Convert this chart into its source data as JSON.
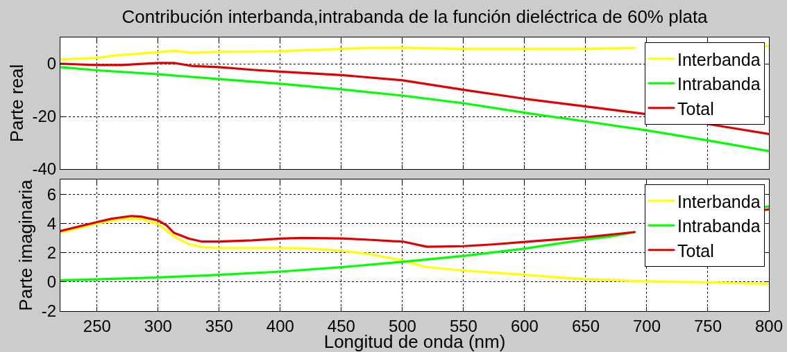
{
  "chart_data": [
    {
      "type": "line",
      "title": "Contribución interbanda,intrabanda de la función dieléctrica de 60% plata",
      "ylabel": "Parte real",
      "xlim": [
        220,
        800
      ],
      "xticks": [
        250,
        300,
        350,
        400,
        450,
        500,
        550,
        600,
        650,
        700,
        750,
        800
      ],
      "ylim": [
        -40,
        10
      ],
      "yticks": [
        -40,
        -20,
        0
      ],
      "grid": true,
      "legend": "top right",
      "tick_labels": "y",
      "series": [
        {
          "name": "Interbanda",
          "color": "#ffff00",
          "x": [
            220,
            250,
            266,
            300,
            313,
            327,
            350,
            377,
            400,
            418,
            450,
            470,
            500,
            550,
            600,
            650,
            690,
            740,
            795,
            800
          ],
          "values": [
            1.6,
            2.2,
            3.2,
            4.4,
            4.9,
            4.2,
            4.5,
            4.6,
            4.7,
            5.1,
            5.6,
            6.0,
            6.1,
            5.6,
            5.6,
            5.6,
            6.0,
            null,
            6.7,
            6.7
          ]
        },
        {
          "name": "Intrabanda",
          "color": "#00ff00",
          "x": [
            220,
            250,
            300,
            350,
            400,
            450,
            500,
            550,
            600,
            650,
            700,
            750,
            800
          ],
          "values": [
            -1.3,
            -2.5,
            -4.0,
            -5.8,
            -7.6,
            -9.7,
            -12.1,
            -15.0,
            -18.6,
            -21.9,
            -25.3,
            -29.1,
            -33.2
          ]
        },
        {
          "name": "Total",
          "color": "#e00000",
          "x": [
            220,
            250,
            270,
            300,
            313,
            327,
            350,
            377,
            400,
            450,
            500,
            550,
            600,
            650,
            697,
            750,
            800
          ],
          "values": [
            0.0,
            -0.5,
            -0.5,
            0.3,
            0.3,
            -0.8,
            -1.3,
            -2.3,
            -3.0,
            -4.3,
            -6.3,
            -9.9,
            -13.3,
            -16.2,
            -19.0,
            -22.9,
            -26.7
          ]
        }
      ]
    },
    {
      "type": "line",
      "xlabel": "Longitud de onda (nm)",
      "ylabel": "Parte imaginaria",
      "xlim": [
        220,
        800
      ],
      "xticks": [
        250,
        300,
        350,
        400,
        450,
        500,
        550,
        600,
        650,
        700,
        750,
        800
      ],
      "ylim": [
        -2,
        7
      ],
      "yticks": [
        -2,
        0,
        2,
        4,
        6
      ],
      "grid": true,
      "legend": "top right",
      "series": [
        {
          "name": "Interbanda",
          "color": "#ffff00",
          "x": [
            220,
            250,
            270,
            286,
            300,
            313,
            325,
            336,
            350,
            400,
            426,
            450,
            470,
            490,
            500,
            518,
            550,
            600,
            650,
            700,
            750,
            800
          ],
          "values": [
            3.35,
            4.0,
            4.29,
            4.29,
            3.95,
            3.1,
            2.58,
            2.38,
            2.31,
            2.31,
            2.27,
            2.12,
            1.93,
            1.63,
            1.46,
            1.03,
            0.77,
            0.48,
            0.17,
            0.03,
            -0.03,
            -0.15
          ]
        },
        {
          "name": "Intrabanda",
          "color": "#00ff00",
          "x": [
            220,
            250,
            300,
            350,
            400,
            450,
            500,
            550,
            600,
            650,
            670,
            690,
            740,
            795,
            800
          ],
          "values": [
            0.1,
            0.17,
            0.3,
            0.48,
            0.7,
            1.0,
            1.37,
            1.77,
            2.27,
            2.9,
            3.1,
            3.4,
            null,
            5.1,
            5.16
          ]
        },
        {
          "name": "Total",
          "color": "#e00000",
          "x": [
            220,
            250,
            262,
            278,
            286,
            300,
            307,
            313,
            325,
            336,
            350,
            377,
            400,
            418,
            450,
            470,
            493,
            500,
            520,
            550,
            576,
            600,
            650,
            690,
            740,
            795,
            800
          ],
          "values": [
            3.47,
            4.09,
            4.32,
            4.5,
            4.46,
            4.2,
            3.86,
            3.35,
            2.96,
            2.75,
            2.75,
            2.84,
            2.96,
            3.0,
            2.97,
            2.89,
            2.78,
            2.76,
            2.4,
            2.44,
            2.57,
            2.73,
            3.05,
            3.4,
            null,
            4.9,
            4.96
          ]
        }
      ]
    }
  ]
}
